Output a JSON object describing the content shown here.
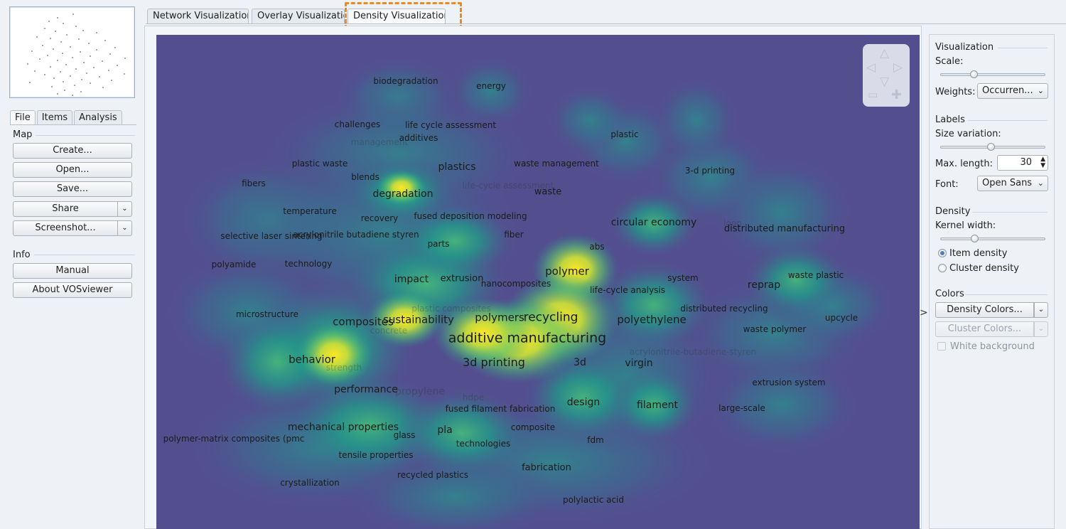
{
  "main_tabs": [
    {
      "label": "Network Visualization"
    },
    {
      "label": "Overlay Visualizatio"
    },
    {
      "label": "Density Visualization"
    }
  ],
  "left_tabs": [
    {
      "label": "File"
    },
    {
      "label": "Items"
    },
    {
      "label": "Analysis"
    }
  ],
  "map_section": {
    "title": "Map",
    "create": "Create...",
    "open": "Open...",
    "save": "Save...",
    "share": "Share",
    "screenshot": "Screenshot..."
  },
  "info_section": {
    "title": "Info",
    "manual": "Manual",
    "about": "About VOSviewer"
  },
  "visualization": {
    "title": "Visualization",
    "scale_label": "Scale:",
    "weights_label": "Weights:",
    "weights_value": "Occurren..."
  },
  "labels_section": {
    "title": "Labels",
    "size_variation_label": "Size variation:",
    "max_length_label": "Max. length:",
    "max_length_value": "30",
    "font_label": "Font:",
    "font_value": "Open Sans"
  },
  "density_section": {
    "title": "Density",
    "kernel_width_label": "Kernel width:",
    "item_density": "Item density",
    "cluster_density": "Cluster density"
  },
  "colors_section": {
    "title": "Colors",
    "density_colors": "Density Colors...",
    "cluster_colors": "Cluster Colors...",
    "white_background": "White background"
  },
  "expand_handle": ">",
  "map_colors": {
    "background": "#534f8f",
    "mid": "#1f9e89",
    "high": "#fde725"
  },
  "map_terms": [
    {
      "text": "biodegradation"
    },
    {
      "text": "energy"
    },
    {
      "text": "challenges"
    },
    {
      "text": "life cycle assessment"
    },
    {
      "text": "management"
    },
    {
      "text": "additives"
    },
    {
      "text": "plastic"
    },
    {
      "text": "plastic waste"
    },
    {
      "text": "plastics"
    },
    {
      "text": "waste management"
    },
    {
      "text": "blends"
    },
    {
      "text": "3-d printing"
    },
    {
      "text": "fibers"
    },
    {
      "text": "degradation"
    },
    {
      "text": "life-cycle assessment"
    },
    {
      "text": "waste"
    },
    {
      "text": "temperature"
    },
    {
      "text": "recovery"
    },
    {
      "text": "fused deposition modeling"
    },
    {
      "text": "circular economy"
    },
    {
      "text": "loop"
    },
    {
      "text": "distributed manufacturing"
    },
    {
      "text": "selective laser sintering"
    },
    {
      "text": "acrylonitrile butadiene styren"
    },
    {
      "text": "fiber"
    },
    {
      "text": "parts"
    },
    {
      "text": "abs"
    },
    {
      "text": "polyamide"
    },
    {
      "text": "technology"
    },
    {
      "text": "polymer"
    },
    {
      "text": "impact"
    },
    {
      "text": "extrusion"
    },
    {
      "text": "nanocomposites"
    },
    {
      "text": "system"
    },
    {
      "text": "waste plastic"
    },
    {
      "text": "life-cycle analysis"
    },
    {
      "text": "reprap"
    },
    {
      "text": "plastic composites"
    },
    {
      "text": "distributed recycling"
    },
    {
      "text": "microstructure"
    },
    {
      "text": "polymers"
    },
    {
      "text": "recycling"
    },
    {
      "text": "composites"
    },
    {
      "text": "sustainability"
    },
    {
      "text": "polyethylene"
    },
    {
      "text": "upcycle"
    },
    {
      "text": "concrete"
    },
    {
      "text": "waste polymer"
    },
    {
      "text": "additive manufacturing"
    },
    {
      "text": "acrylonitrile-butadiene-styren"
    },
    {
      "text": "behavior"
    },
    {
      "text": "3d printing"
    },
    {
      "text": "3d"
    },
    {
      "text": "virgin"
    },
    {
      "text": "strength"
    },
    {
      "text": "extrusion system"
    },
    {
      "text": "performance"
    },
    {
      "text": "propylene"
    },
    {
      "text": "hdpe"
    },
    {
      "text": "design"
    },
    {
      "text": "fused filament fabrication"
    },
    {
      "text": "filament"
    },
    {
      "text": "large-scale"
    },
    {
      "text": "mechanical properties"
    },
    {
      "text": "pla"
    },
    {
      "text": "composite"
    },
    {
      "text": "glass"
    },
    {
      "text": "polymer-matrix composites (pmc"
    },
    {
      "text": "technologies"
    },
    {
      "text": "fdm"
    },
    {
      "text": "tensile properties"
    },
    {
      "text": "fabrication"
    },
    {
      "text": "recycled plastics"
    },
    {
      "text": "crystallization"
    },
    {
      "text": "polylactic acid"
    }
  ]
}
